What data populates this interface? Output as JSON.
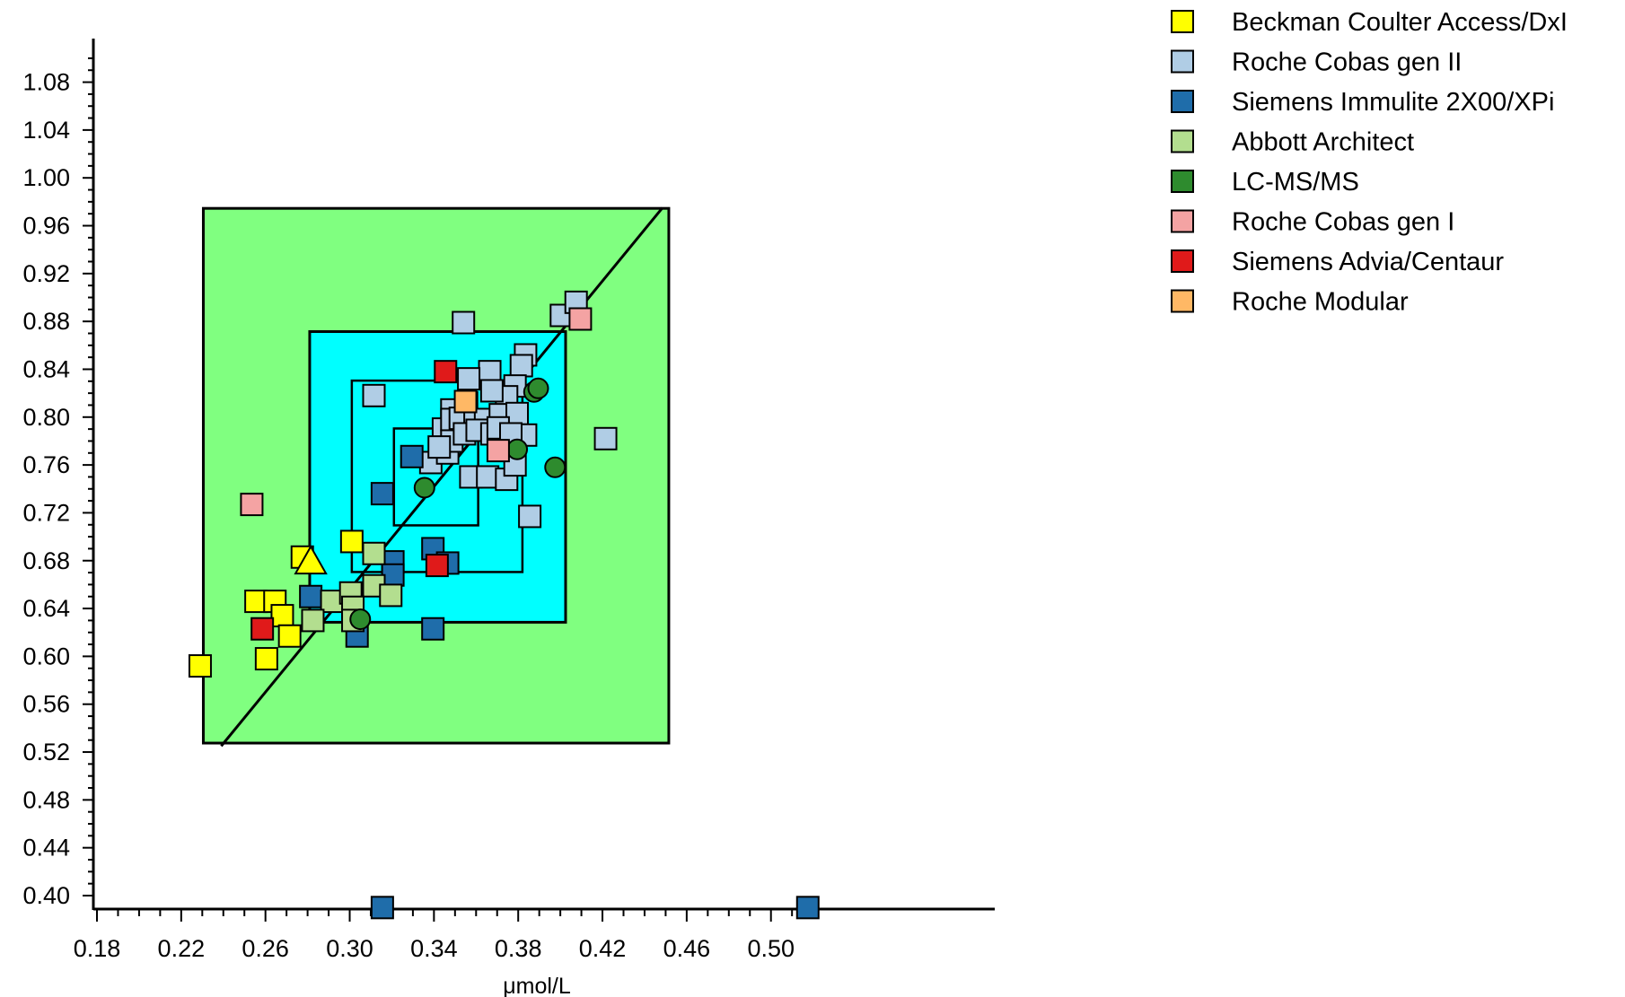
{
  "chart_data": {
    "type": "scatter",
    "xlabel": "μmol/L",
    "ylabel": "",
    "title": "",
    "xlim": [
      0.18,
      0.52
    ],
    "ylim": [
      0.4,
      1.1
    ],
    "x_ticks": [
      0.18,
      0.22,
      0.26,
      0.3,
      0.34,
      0.38,
      0.42,
      0.46,
      0.5
    ],
    "x_tick_labels": [
      "0.18",
      "0.22",
      "0.26",
      "0.30",
      "0.34",
      "0.38",
      "0.42",
      "0.46",
      "0.50"
    ],
    "y_ticks": [
      0.4,
      0.44,
      0.48,
      0.52,
      0.56,
      0.6,
      0.64,
      0.68,
      0.72,
      0.76,
      0.8,
      0.84,
      0.88,
      0.92,
      0.96,
      1.0,
      1.04,
      1.08
    ],
    "y_tick_labels": [
      "0.40",
      "0.44",
      "0.48",
      "0.52",
      "0.56",
      "0.60",
      "0.64",
      "0.68",
      "0.72",
      "0.76",
      "0.80",
      "0.84",
      "0.88",
      "0.92",
      "0.96",
      "1.00",
      "1.04",
      "1.08"
    ],
    "grid": false,
    "legend_position": "top-right",
    "target_zones": [
      {
        "x": [
          0.2305,
          0.4515
        ],
        "y": [
          0.5275,
          0.9745
        ],
        "color": "#80FF80"
      },
      {
        "x": [
          0.281,
          0.4025
        ],
        "y": [
          0.6285,
          0.8715
        ],
        "color": "#00FFFF"
      },
      {
        "x": [
          0.301,
          0.382
        ],
        "y": [
          0.6705,
          0.8305
        ],
        "color": "none"
      },
      {
        "x": [
          0.321,
          0.361
        ],
        "y": [
          0.7095,
          0.7905
        ],
        "color": "none"
      }
    ],
    "identity_line": {
      "x": [
        0.239,
        0.4485
      ],
      "y": [
        0.525,
        0.975
      ]
    },
    "series": [
      {
        "name": "Beckman Coulter Access/DxI",
        "color": "#FFFF00",
        "marker": "square",
        "x": [
          0.229,
          0.2555,
          0.2645,
          0.268,
          0.2715,
          0.2605,
          0.2775,
          0.301
        ],
        "y": [
          0.592,
          0.646,
          0.646,
          0.634,
          0.617,
          0.598,
          0.683,
          0.696
        ]
      },
      {
        "name": "Roche Cobas gen II",
        "color": "#B0CDE5",
        "marker": "square",
        "x": [
          0.3115,
          0.354,
          0.4005,
          0.4075,
          0.4215,
          0.3855,
          0.3835,
          0.3815,
          0.3785,
          0.3665,
          0.3565,
          0.3745,
          0.3675,
          0.3555,
          0.3485,
          0.3445,
          0.3485,
          0.3525,
          0.3595,
          0.3645,
          0.3715,
          0.3795,
          0.3835,
          0.3385,
          0.3465,
          0.3575,
          0.3655,
          0.3745,
          0.3785,
          0.3485,
          0.3545,
          0.3605,
          0.3675,
          0.3705,
          0.3765,
          0.3425
        ],
        "y": [
          0.818,
          0.879,
          0.885,
          0.896,
          0.782,
          0.717,
          0.852,
          0.843,
          0.826,
          0.838,
          0.832,
          0.817,
          0.822,
          0.812,
          0.806,
          0.79,
          0.798,
          0.799,
          0.795,
          0.798,
          0.802,
          0.803,
          0.785,
          0.762,
          0.77,
          0.75,
          0.75,
          0.748,
          0.76,
          0.78,
          0.786,
          0.789,
          0.786,
          0.791,
          0.786,
          0.775
        ]
      },
      {
        "name": "Siemens Immulite 2X00/XPi",
        "color": "#1F6DAA",
        "marker": "square",
        "x": [
          0.3155,
          0.3295,
          0.3205,
          0.3205,
          0.3395,
          0.3465,
          0.2815,
          0.3035,
          0.3395,
          0.3155,
          0.5175
        ],
        "y": [
          0.736,
          0.767,
          0.679,
          0.668,
          0.69,
          0.678,
          0.65,
          0.617,
          0.623,
          0.39,
          0.39
        ]
      },
      {
        "name": "Abbott Architect",
        "color": "#B3DE8F",
        "marker": "square",
        "x": [
          0.3115,
          0.3115,
          0.3195,
          0.2915,
          0.3005,
          0.3015,
          0.3015,
          0.2825
        ],
        "y": [
          0.686,
          0.659,
          0.651,
          0.646,
          0.653,
          0.641,
          0.63,
          0.63
        ]
      },
      {
        "name": "LC-MS/MS",
        "color": "#2E8B2E",
        "marker": "circle",
        "x": [
          0.3355,
          0.3795,
          0.3975,
          0.3875,
          0.3895,
          0.305
        ],
        "y": [
          0.741,
          0.773,
          0.758,
          0.821,
          0.824,
          0.631
        ]
      },
      {
        "name": "Roche Cobas gen I",
        "color": "#F4A3A3",
        "marker": "square",
        "x": [
          0.2535,
          0.4095,
          0.3705
        ],
        "y": [
          0.727,
          0.882,
          0.772
        ]
      },
      {
        "name": "Siemens Advia/Centaur",
        "color": "#E01A1A",
        "marker": "square",
        "x": [
          0.2585,
          0.3455,
          0.3415
        ],
        "y": [
          0.623,
          0.838,
          0.676
        ]
      },
      {
        "name": "Roche Modular",
        "color": "#FFB865",
        "marker": "square",
        "x": [
          0.355
        ],
        "y": [
          0.813
        ]
      }
    ],
    "highlight_point": {
      "x": 0.2815,
      "y": 0.679,
      "color": "#FFFF00",
      "marker": "triangle"
    }
  }
}
